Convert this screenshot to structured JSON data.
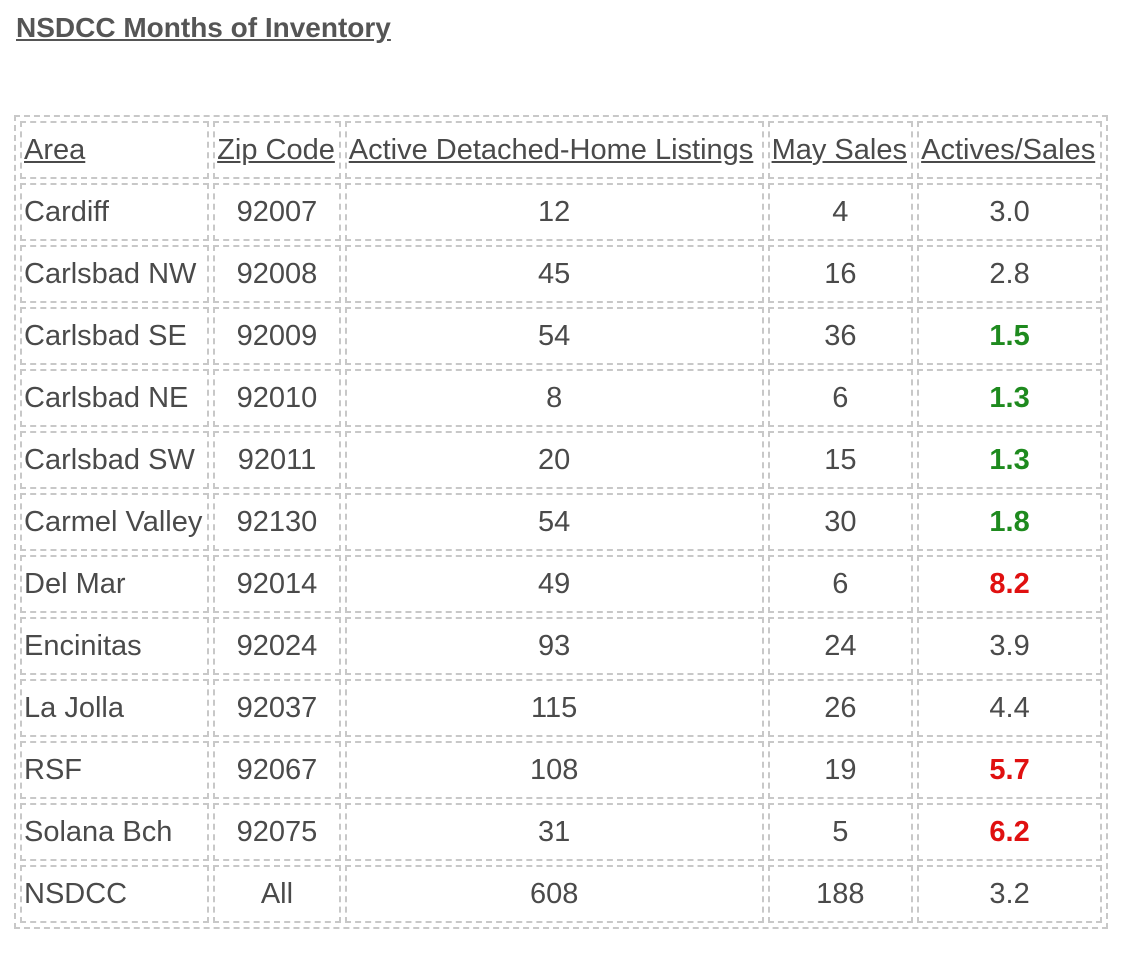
{
  "title": "NSDCC Months of Inventory",
  "colors": {
    "low": "#1e8a1e",
    "high": "#e01010",
    "text": "#4a4a4a",
    "border": "#c8c8c8"
  },
  "table": {
    "headers": [
      "Area",
      "Zip Code",
      "Active Detached-Home Listings",
      "May Sales",
      "Actives/Sales"
    ],
    "rows": [
      {
        "area": "Cardiff",
        "zip": "92007",
        "actives": "12",
        "sales": "4",
        "ratio": "3.0",
        "flag": ""
      },
      {
        "area": "Carlsbad NW",
        "zip": "92008",
        "actives": "45",
        "sales": "16",
        "ratio": "2.8",
        "flag": ""
      },
      {
        "area": "Carlsbad SE",
        "zip": "92009",
        "actives": "54",
        "sales": "36",
        "ratio": "1.5",
        "flag": "green"
      },
      {
        "area": "Carlsbad NE",
        "zip": "92010",
        "actives": "8",
        "sales": "6",
        "ratio": "1.3",
        "flag": "green"
      },
      {
        "area": "Carlsbad SW",
        "zip": "92011",
        "actives": "20",
        "sales": "15",
        "ratio": "1.3",
        "flag": "green"
      },
      {
        "area": "Carmel Valley",
        "zip": "92130",
        "actives": "54",
        "sales": "30",
        "ratio": "1.8",
        "flag": "green"
      },
      {
        "area": "Del Mar",
        "zip": "92014",
        "actives": "49",
        "sales": "6",
        "ratio": "8.2",
        "flag": "red"
      },
      {
        "area": "Encinitas",
        "zip": "92024",
        "actives": "93",
        "sales": "24",
        "ratio": "3.9",
        "flag": ""
      },
      {
        "area": "La Jolla",
        "zip": "92037",
        "actives": "115",
        "sales": "26",
        "ratio": "4.4",
        "flag": ""
      },
      {
        "area": "RSF",
        "zip": "92067",
        "actives": "108",
        "sales": "19",
        "ratio": "5.7",
        "flag": "red"
      },
      {
        "area": "Solana Bch",
        "zip": "92075",
        "actives": "31",
        "sales": "5",
        "ratio": "6.2",
        "flag": "red"
      },
      {
        "area": "NSDCC",
        "zip": "All",
        "actives": "608",
        "sales": "188",
        "ratio": "3.2",
        "flag": ""
      }
    ]
  }
}
